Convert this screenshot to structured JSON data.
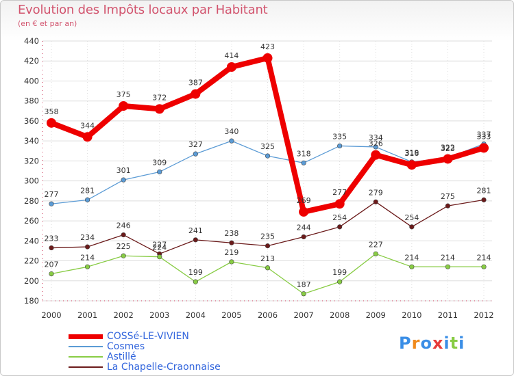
{
  "header": {
    "title": "Evolution des Impôts locaux par Habitant",
    "subtitle": "(en € et par an)"
  },
  "logo_text": "Proxiti",
  "chart_data": {
    "type": "line",
    "title": "Evolution des Impôts locaux par Habitant",
    "subtitle": "(en € et par an)",
    "xlabel": "",
    "ylabel": "",
    "x": [
      "2000",
      "2001",
      "2002",
      "2003",
      "2004",
      "2005",
      "2006",
      "2007",
      "2008",
      "2009",
      "2010",
      "2011",
      "2012"
    ],
    "ylim": [
      180,
      440
    ],
    "yticks": [
      180,
      200,
      220,
      240,
      260,
      280,
      300,
      320,
      340,
      360,
      380,
      400,
      420,
      440
    ],
    "grid": true,
    "legend_position": "bottom-left",
    "series": [
      {
        "name": "COSSé-LE-VIVIEN",
        "color": "#ee0000",
        "values": [
          358,
          344,
          375,
          372,
          387,
          414,
          423,
          269,
          277,
          326,
          316,
          322,
          333
        ]
      },
      {
        "name": "Cosmes",
        "color": "#5b9bd5",
        "values": [
          277,
          281,
          301,
          309,
          327,
          340,
          325,
          318,
          335,
          334,
          319,
          323,
          337
        ]
      },
      {
        "name": "Astillé",
        "color": "#88cc44",
        "values": [
          207,
          214,
          225,
          224,
          199,
          219,
          213,
          187,
          199,
          227,
          214,
          214,
          214
        ]
      },
      {
        "name": "La Chapelle-Craonnaise",
        "color": "#6b1a1a",
        "values": [
          233,
          234,
          246,
          227,
          241,
          238,
          235,
          244,
          254,
          279,
          254,
          275,
          281
        ]
      }
    ]
  }
}
